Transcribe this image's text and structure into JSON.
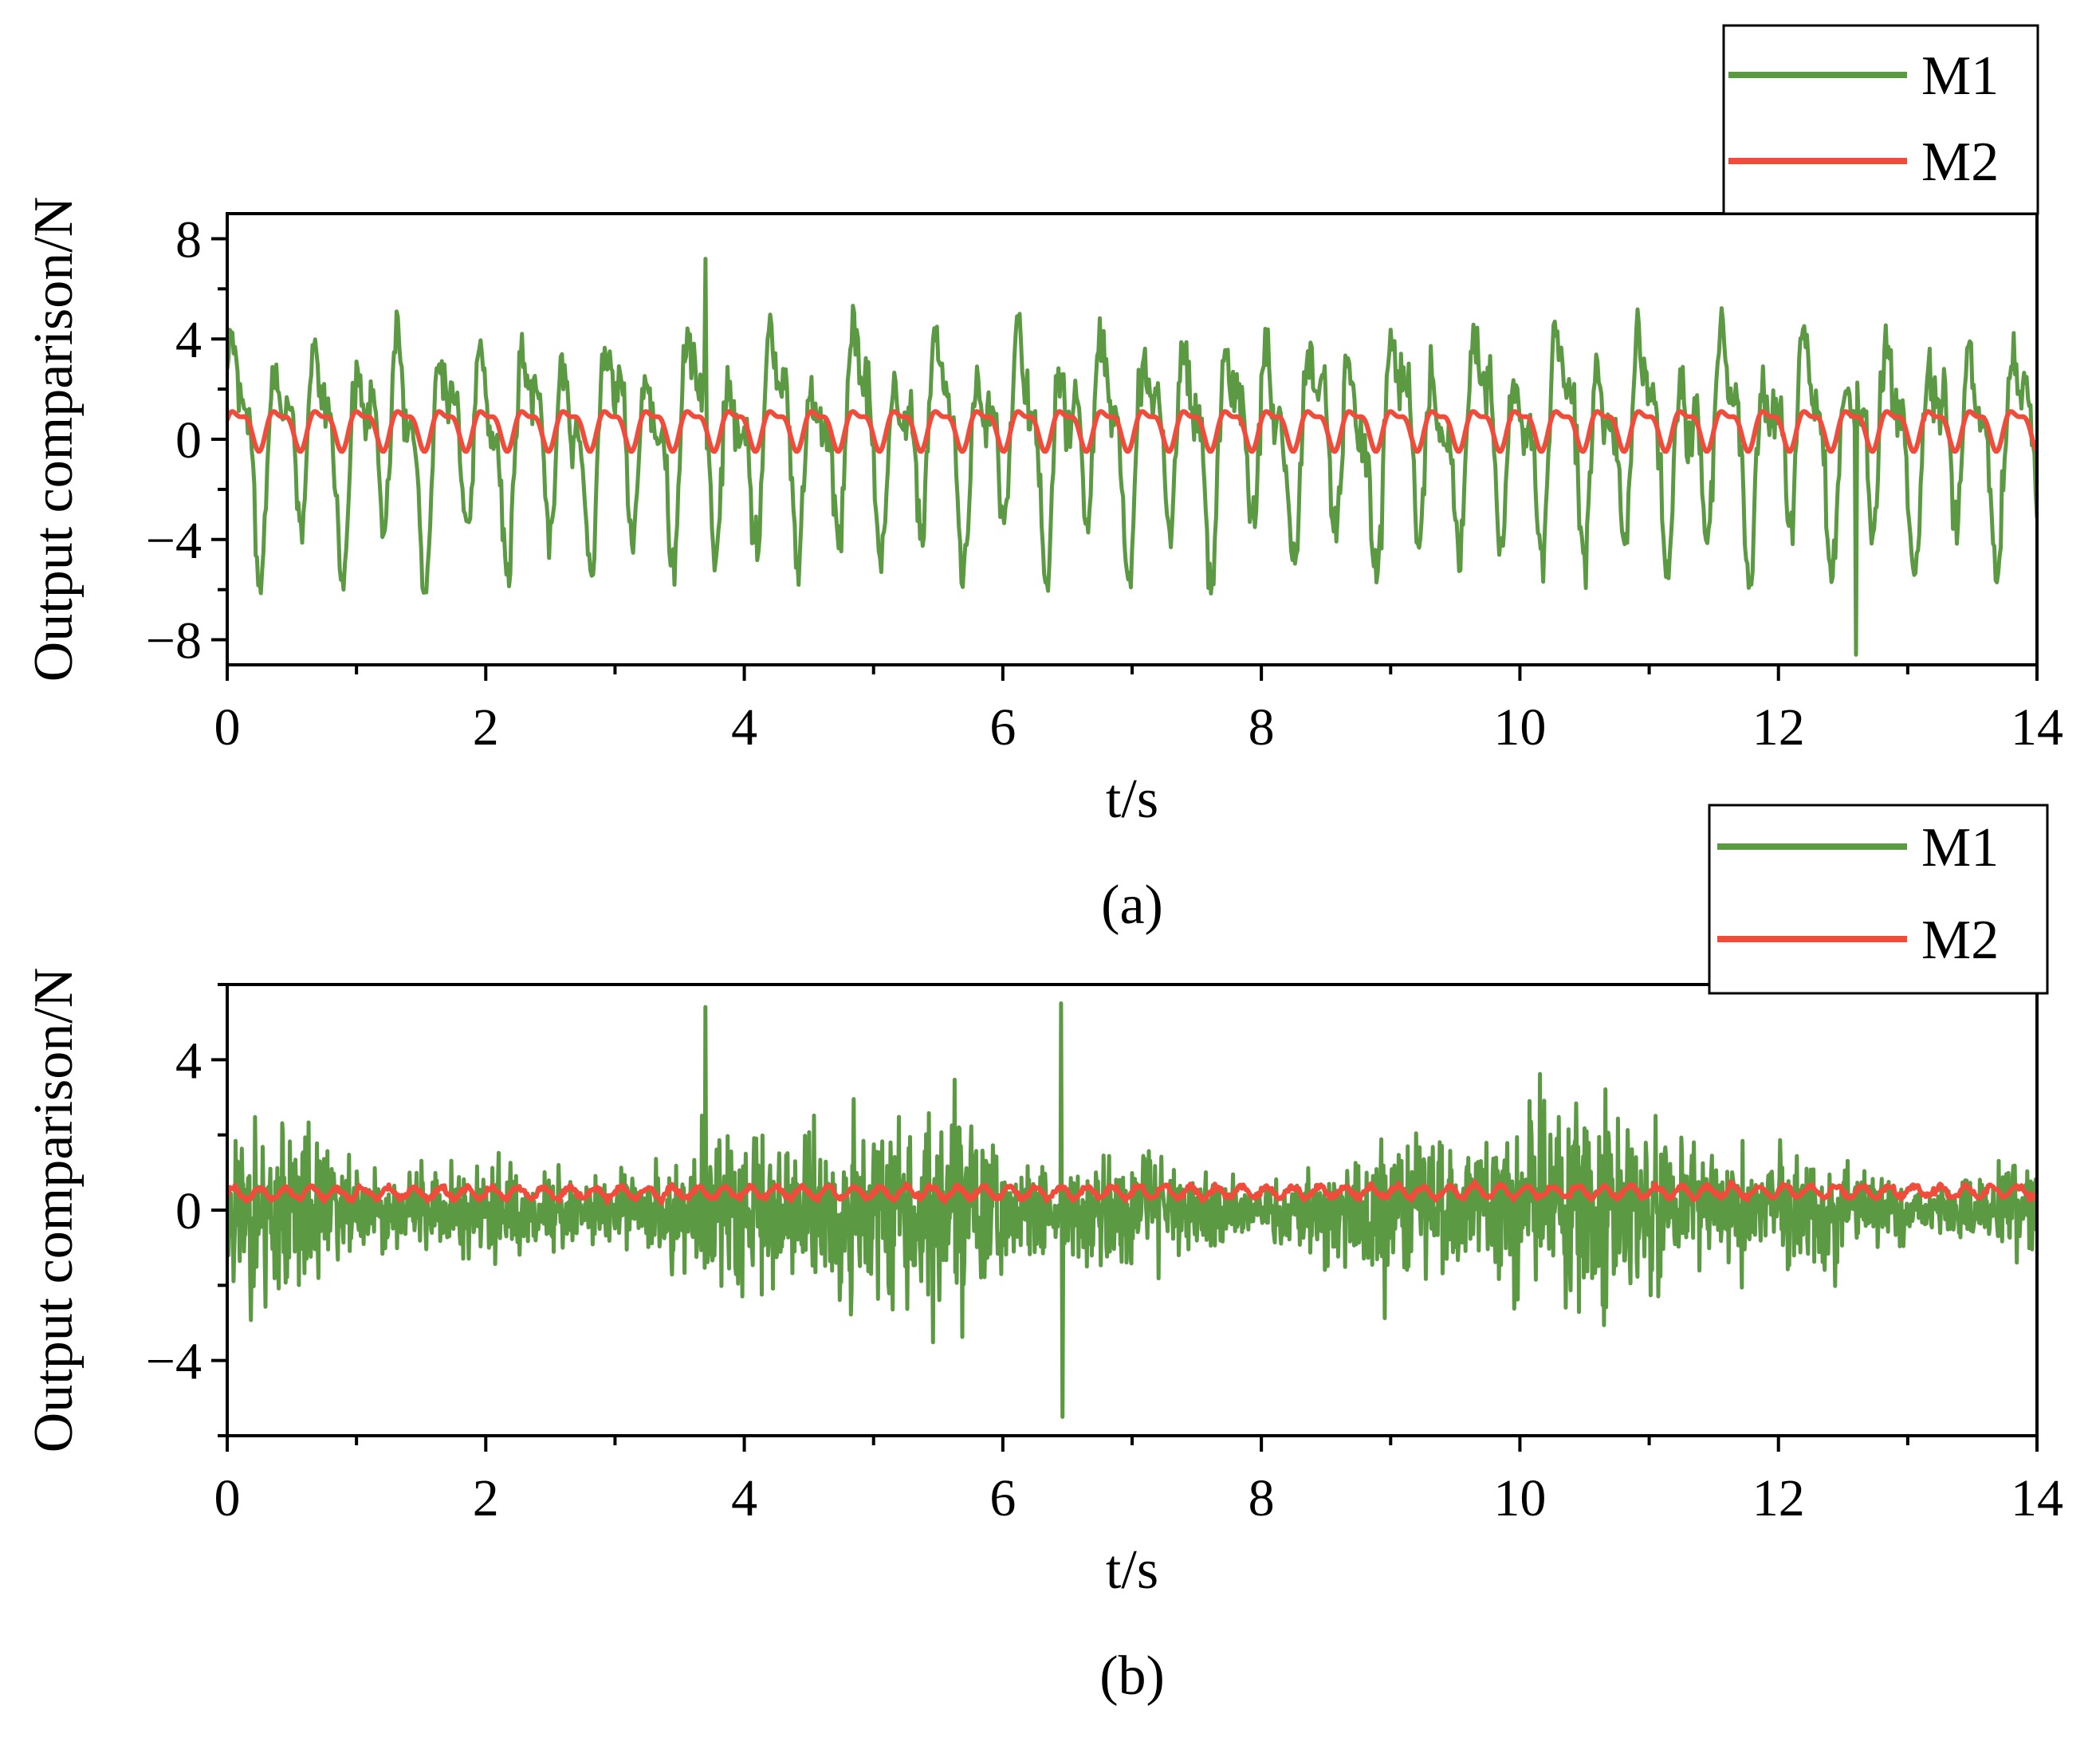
{
  "colors": {
    "M1": "#5b9a43",
    "M2": "#ef4c3c",
    "axis": "#000000"
  },
  "chart_data": [
    {
      "type": "line",
      "caption": "(a)",
      "xlabel": "t/s",
      "ylabel": "Output comparison/N",
      "xlim": [
        0,
        14
      ],
      "ylim": [
        -9,
        9
      ],
      "x_ticks": [
        0,
        2,
        4,
        6,
        8,
        10,
        12,
        14
      ],
      "y_ticks": [
        -8,
        -4,
        0,
        4,
        8
      ],
      "grid": false,
      "legend": {
        "placement": "top-right, outside plot area",
        "entries": [
          "M1",
          "M2"
        ]
      },
      "series": [
        {
          "name": "M1",
          "color_key": "M1",
          "style": "dense oscillation",
          "approx_mean": 0,
          "approx_amplitude": 5.6,
          "dominant_period_s": 0.32,
          "peak": {
            "t": 3.7,
            "value": 7.2
          },
          "trough": {
            "t": 12.6,
            "value": -8.6
          }
        },
        {
          "name": "M2",
          "color_key": "M2",
          "style": "small periodic oscillation",
          "approx_mean": 0.5,
          "approx_amplitude": 0.95,
          "dominant_period_s": 0.32,
          "max": 1.5,
          "min": -0.5
        }
      ]
    },
    {
      "type": "line",
      "caption": "(b)",
      "xlabel": "t/s",
      "ylabel": "Output comparison/N",
      "xlim": [
        0,
        14
      ],
      "ylim": [
        -6,
        6
      ],
      "x_ticks": [
        0,
        2,
        4,
        6,
        8,
        10,
        12,
        14
      ],
      "y_ticks": [
        -4,
        0,
        4
      ],
      "grid": false,
      "legend": {
        "placement": "top-right, outside plot area",
        "entries": [
          "M1",
          "M2"
        ]
      },
      "series": [
        {
          "name": "M1",
          "color_key": "M1",
          "style": "random noise",
          "approx_mean": 0,
          "approx_amplitude": 2.4,
          "peak": {
            "t": 6.45,
            "value": 5.5
          },
          "trough": {
            "t": 6.45,
            "value": -5.5
          }
        },
        {
          "name": "M2",
          "color_key": "M2",
          "style": "narrow band",
          "approx_mean": 0.45,
          "approx_amplitude": 0.25,
          "max": 0.8,
          "min": 0.1
        }
      ]
    }
  ]
}
